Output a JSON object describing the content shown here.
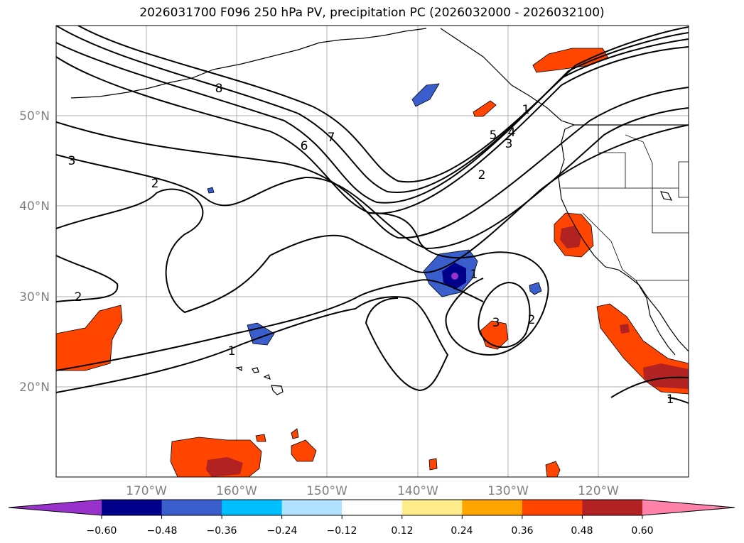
{
  "title": "2026031700 F096 250 hPa PV, precipitation PC (2026032000 - 2026032100)",
  "map": {
    "lat_labels": [
      "50°N",
      "40°N",
      "30°N",
      "20°N"
    ],
    "lon_labels": [
      "170°W",
      "160°W",
      "150°W",
      "140°W",
      "130°W",
      "120°W"
    ],
    "contour_labels": [
      "8",
      "7",
      "6",
      "5",
      "4",
      "3",
      "3",
      "2",
      "2",
      "2",
      "1",
      "1",
      "1",
      "3",
      "2",
      "1"
    ]
  },
  "colorbar": {
    "ticks": [
      "−0.60",
      "−0.48",
      "−0.36",
      "−0.24",
      "−0.12",
      "0.12",
      "0.24",
      "0.36",
      "0.48",
      "0.60"
    ],
    "colors": [
      "#9932cc",
      "#00008b",
      "#3a5fcd",
      "#00bfff",
      "#b0e2ff",
      "#ffffff",
      "#ffec8b",
      "#ffa500",
      "#ff4500",
      "#b22222",
      "#ff82ab"
    ]
  }
}
